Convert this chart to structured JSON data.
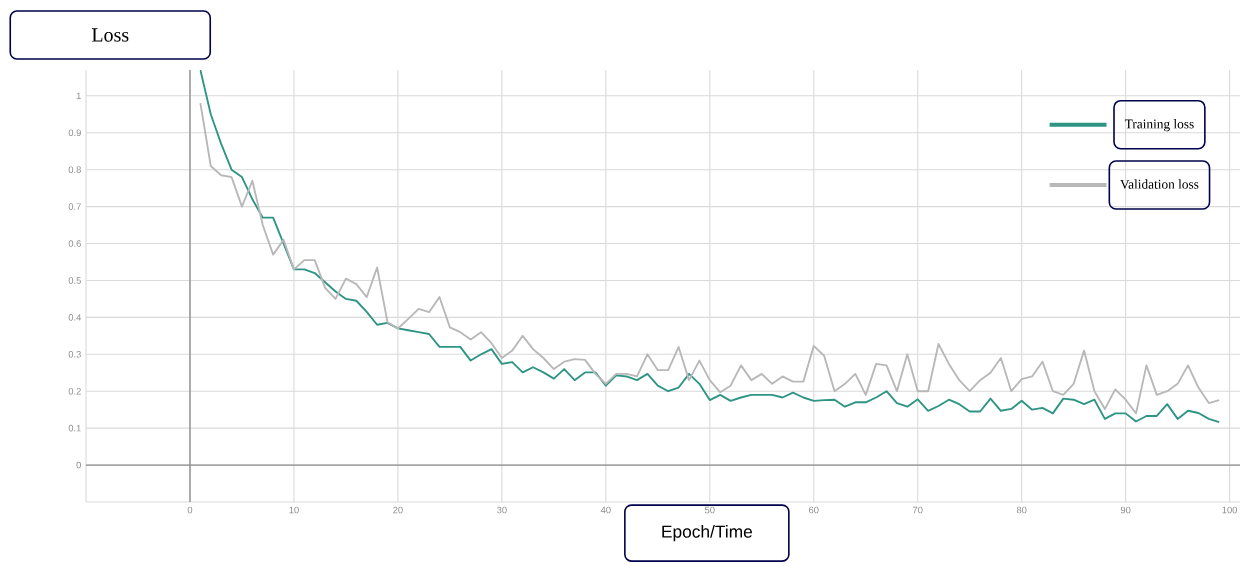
{
  "chart_data": {
    "type": "line",
    "xlabel": "Epoch/Time",
    "ylabel": "Loss",
    "x": [
      1,
      2,
      3,
      4,
      5,
      6,
      7,
      8,
      9,
      10,
      11,
      12,
      13,
      14,
      15,
      16,
      17,
      18,
      19,
      20,
      21,
      22,
      23,
      24,
      25,
      26,
      27,
      28,
      29,
      30,
      31,
      32,
      33,
      34,
      35,
      36,
      37,
      38,
      39,
      40,
      41,
      42,
      43,
      44,
      45,
      46,
      47,
      48,
      49,
      50,
      51,
      52,
      53,
      54,
      55,
      56,
      57,
      58,
      59,
      60,
      61,
      62,
      63,
      64,
      65,
      66,
      67,
      68,
      69,
      70,
      71,
      72,
      73,
      74,
      75,
      76,
      77,
      78,
      79,
      80,
      81,
      82,
      83,
      84,
      85,
      86,
      87,
      88,
      89,
      90,
      91,
      92,
      93,
      94,
      95,
      96,
      97,
      98,
      99
    ],
    "series": [
      {
        "name": "Training loss",
        "color": "#2e9584",
        "values": [
          1.07,
          0.95,
          0.87,
          0.8,
          0.78,
          0.72,
          0.67,
          0.67,
          0.6,
          0.53,
          0.53,
          0.52,
          0.495,
          0.47,
          0.45,
          0.445,
          0.415,
          0.38,
          0.385,
          0.37,
          0.365,
          0.36,
          0.355,
          0.32,
          0.32,
          0.32,
          0.283,
          0.3,
          0.314,
          0.274,
          0.279,
          0.251,
          0.265,
          0.251,
          0.234,
          0.26,
          0.23,
          0.251,
          0.251,
          0.215,
          0.243,
          0.24,
          0.23,
          0.247,
          0.215,
          0.2,
          0.21,
          0.247,
          0.22,
          0.176,
          0.19,
          0.174,
          0.183,
          0.19,
          0.19,
          0.19,
          0.183,
          0.196,
          0.183,
          0.174,
          0.176,
          0.177,
          0.158,
          0.17,
          0.17,
          0.183,
          0.2,
          0.168,
          0.158,
          0.178,
          0.147,
          0.16,
          0.177,
          0.165,
          0.145,
          0.145,
          0.18,
          0.147,
          0.152,
          0.174,
          0.15,
          0.155,
          0.14,
          0.18,
          0.177,
          0.165,
          0.177,
          0.125,
          0.14,
          0.14,
          0.118,
          0.133,
          0.133,
          0.165,
          0.125,
          0.147,
          0.141,
          0.125,
          0.116
        ]
      },
      {
        "name": "Validation loss",
        "color": "#b8b8b8",
        "values": [
          0.98,
          0.81,
          0.785,
          0.78,
          0.7,
          0.77,
          0.65,
          0.57,
          0.61,
          0.53,
          0.555,
          0.555,
          0.48,
          0.45,
          0.505,
          0.49,
          0.455,
          0.535,
          0.387,
          0.37,
          0.396,
          0.423,
          0.414,
          0.455,
          0.373,
          0.36,
          0.34,
          0.36,
          0.33,
          0.29,
          0.31,
          0.35,
          0.314,
          0.29,
          0.26,
          0.28,
          0.287,
          0.285,
          0.247,
          0.22,
          0.247,
          0.247,
          0.24,
          0.3,
          0.257,
          0.257,
          0.32,
          0.23,
          0.283,
          0.23,
          0.197,
          0.215,
          0.27,
          0.23,
          0.247,
          0.22,
          0.24,
          0.226,
          0.226,
          0.323,
          0.296,
          0.2,
          0.22,
          0.247,
          0.19,
          0.274,
          0.27,
          0.2,
          0.3,
          0.2,
          0.2,
          0.328,
          0.274,
          0.23,
          0.2,
          0.23,
          0.25,
          0.29,
          0.2,
          0.233,
          0.24,
          0.28,
          0.2,
          0.19,
          0.22,
          0.31,
          0.2,
          0.152,
          0.205,
          0.177,
          0.14,
          0.27,
          0.19,
          0.2,
          0.22,
          0.27,
          0.21,
          0.168,
          0.176
        ]
      }
    ],
    "xlim": [
      -10,
      101
    ],
    "ylim": [
      -0.1,
      1.07
    ],
    "xticks": [
      {
        "value": -10,
        "label": null
      },
      0,
      10,
      20,
      30,
      40,
      50,
      60,
      70,
      80,
      90,
      100
    ],
    "yticks": [
      {
        "value": -0.1,
        "label": null
      },
      0,
      0.1,
      0.2,
      0.3,
      0.4,
      0.5,
      0.6,
      0.7,
      0.8,
      0.9,
      1
    ],
    "grid": true,
    "legend": "top right",
    "marker": "none",
    "line_style": "solid"
  }
}
